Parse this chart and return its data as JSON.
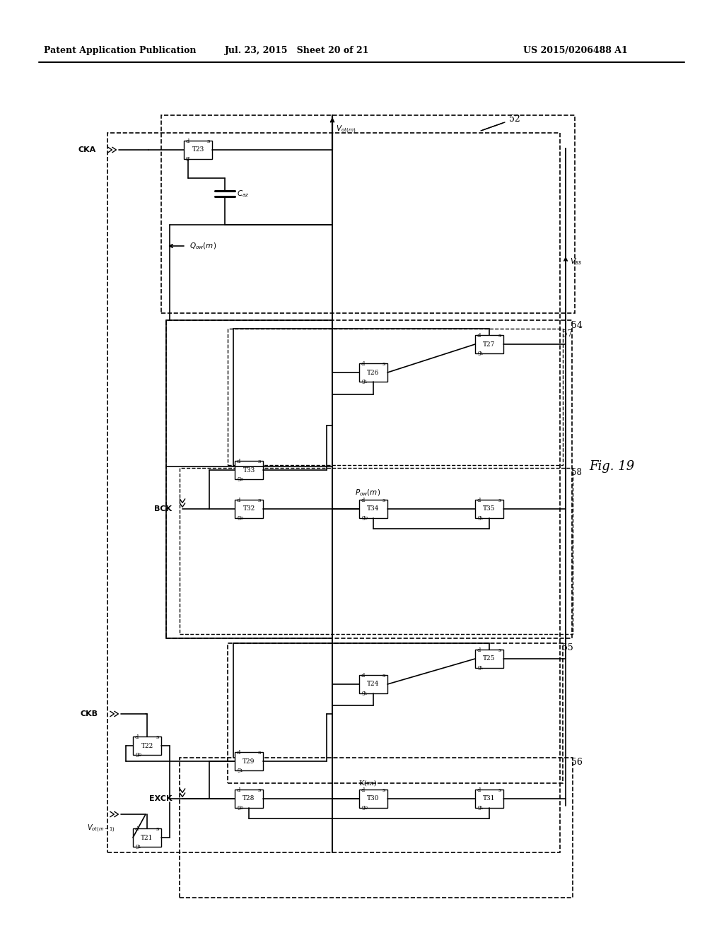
{
  "background_color": "#ffffff",
  "text_color": "#000000",
  "header_left": "Patent Application Publication",
  "header_center": "Jul. 23, 2015   Sheet 20 of 21",
  "header_right": "US 2015/0206488 A1",
  "fig_label": "Fig. 19",
  "label_52": "52",
  "label_54": "54",
  "label_55": "55",
  "label_56": "56",
  "label_57": "57",
  "label_58": "58",
  "signal_CKA": "CKA",
  "signal_CKB": "CKB",
  "signal_BCK": "BCK",
  "signal_EXCK": "EXCK",
  "signal_Vss": "V_{ss}",
  "signal_Vout_m": "V_{ot(m)}",
  "signal_Vout_m1": "V_{ot(m-1)}",
  "signal_Qout": "Q_{ow}(m)",
  "signal_Pout": "P_{ow}(m)",
  "signal_K": "K(m)",
  "signal_Caz": "C_{az}"
}
